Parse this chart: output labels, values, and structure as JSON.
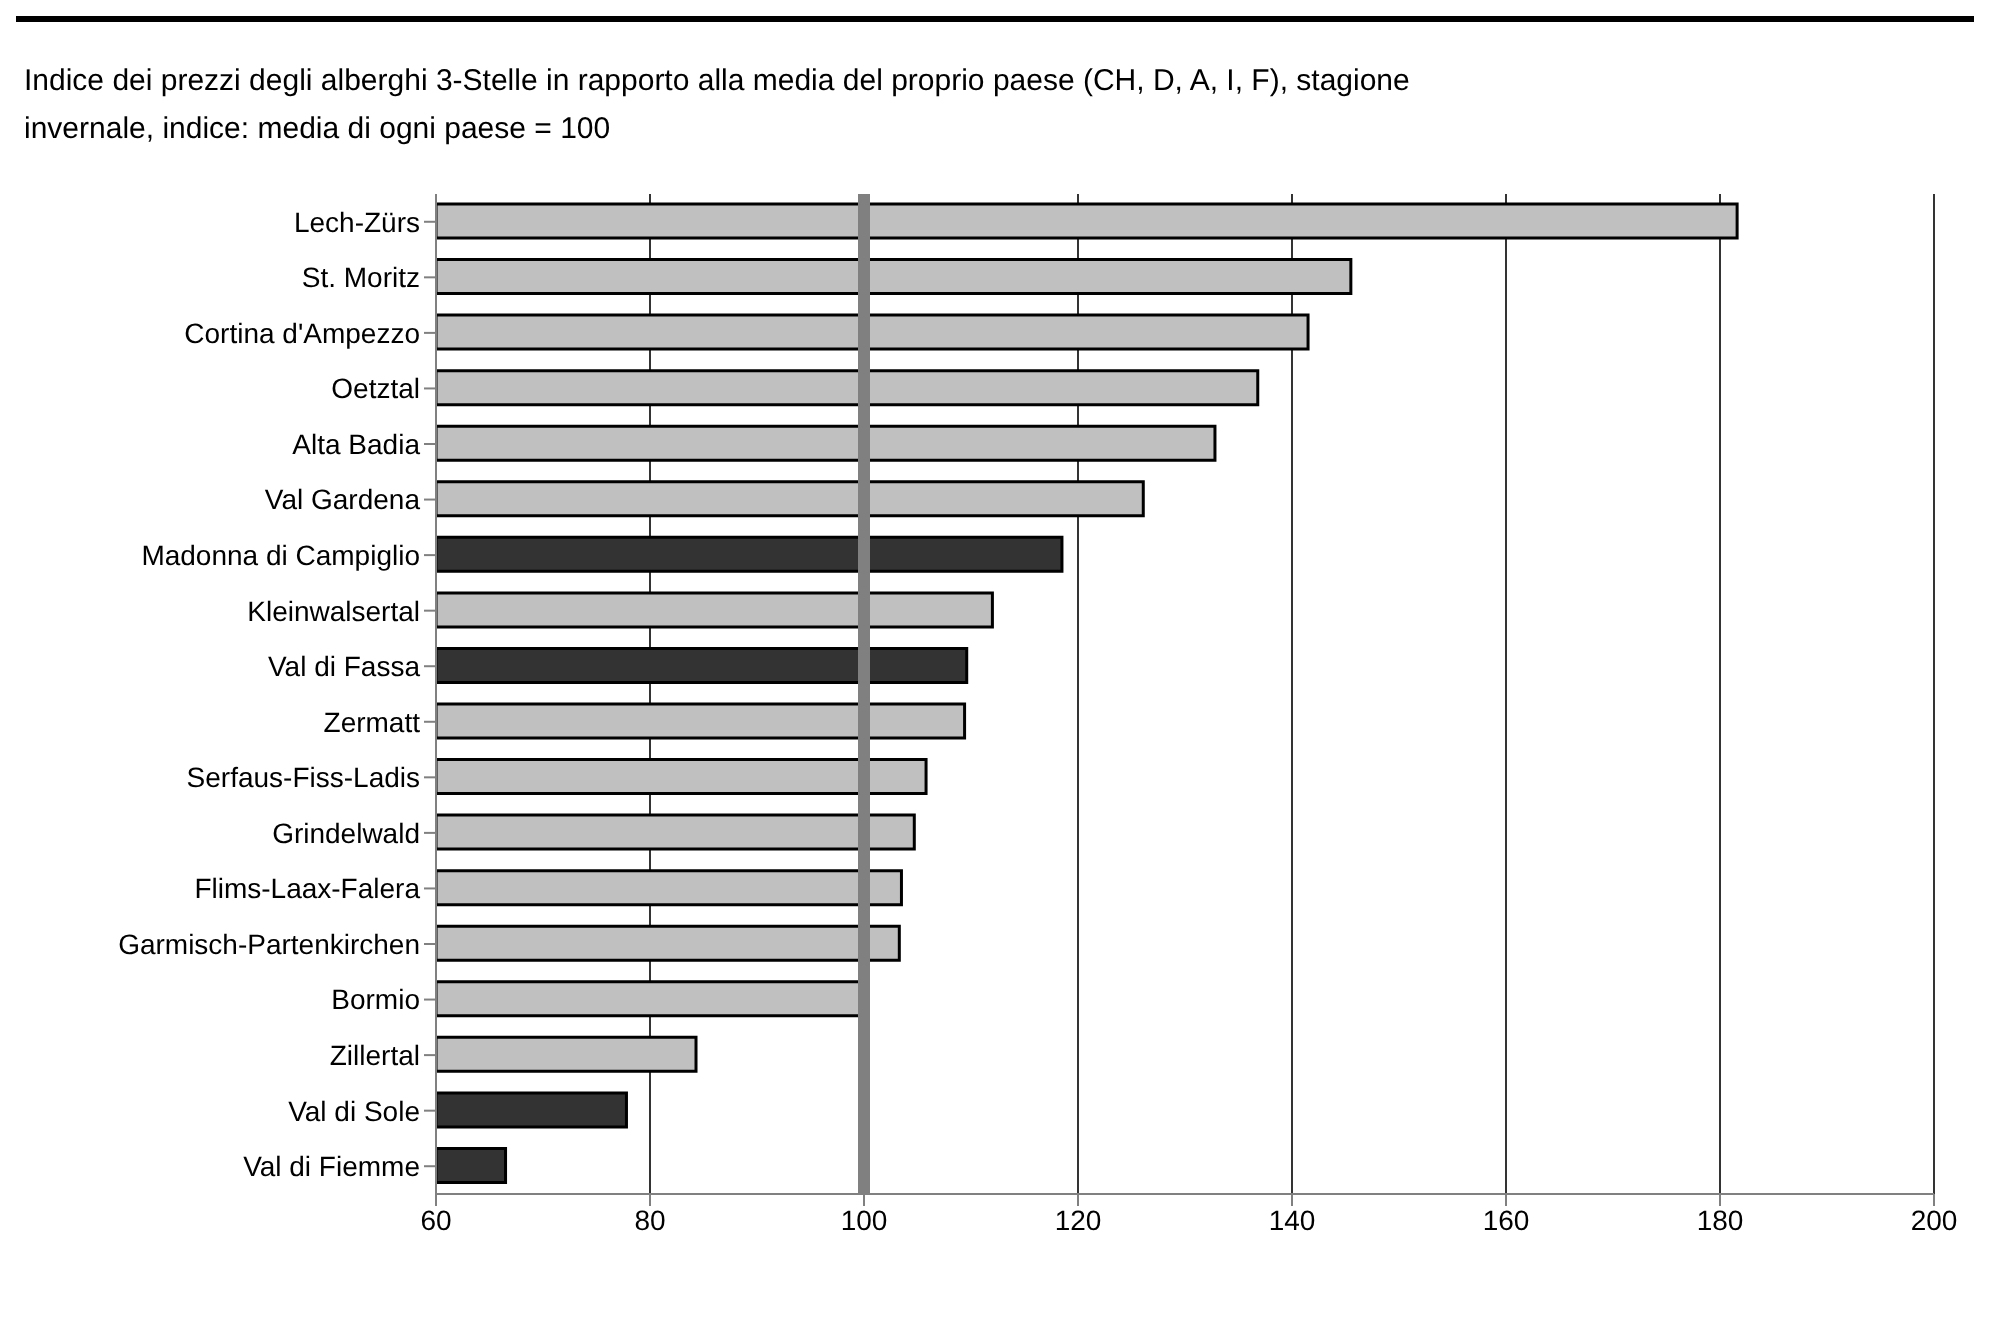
{
  "chart_data": {
    "type": "bar",
    "orientation": "horizontal",
    "title": "Indice dei prezzi degli alberghi 3-Stelle in rapporto alla media del proprio paese (CH, D, A, I, F), stagione invernale, indice: media di ogni paese = 100",
    "categories": [
      "Lech-Zürs",
      "St. Moritz",
      "Cortina d'Ampezzo",
      "Oetztal",
      "Alta Badia",
      "Val Gardena",
      "Madonna di Campiglio",
      "Kleinwalsertal",
      "Val di Fassa",
      "Zermatt",
      "Serfaus-Fiss-Ladis",
      "Grindelwald",
      "Flims-Laax-Falera",
      "Garmisch-Partenkirchen",
      "Bormio",
      "Zillertal",
      "Val di Sole",
      "Val di Fiemme"
    ],
    "values": [
      181.6,
      145.5,
      141.5,
      136.8,
      132.8,
      126.1,
      118.5,
      112.0,
      109.6,
      109.4,
      105.8,
      104.7,
      103.5,
      103.3,
      100,
      84.3,
      77.8,
      66.5
    ],
    "colors": [
      "#c0c0c0",
      "#c0c0c0",
      "#c0c0c0",
      "#c0c0c0",
      "#c0c0c0",
      "#c0c0c0",
      "#333333",
      "#c0c0c0",
      "#333333",
      "#c0c0c0",
      "#c0c0c0",
      "#c0c0c0",
      "#c0c0c0",
      "#c0c0c0",
      "#c0c0c0",
      "#c0c0c0",
      "#333333",
      "#333333"
    ],
    "xlim": [
      60,
      200
    ],
    "xticks": [
      60,
      80,
      100,
      120,
      140,
      160,
      180,
      200
    ],
    "grid": "x",
    "ref_lines": [
      {
        "axis": "x",
        "value": 100,
        "color": "#808080"
      }
    ]
  }
}
